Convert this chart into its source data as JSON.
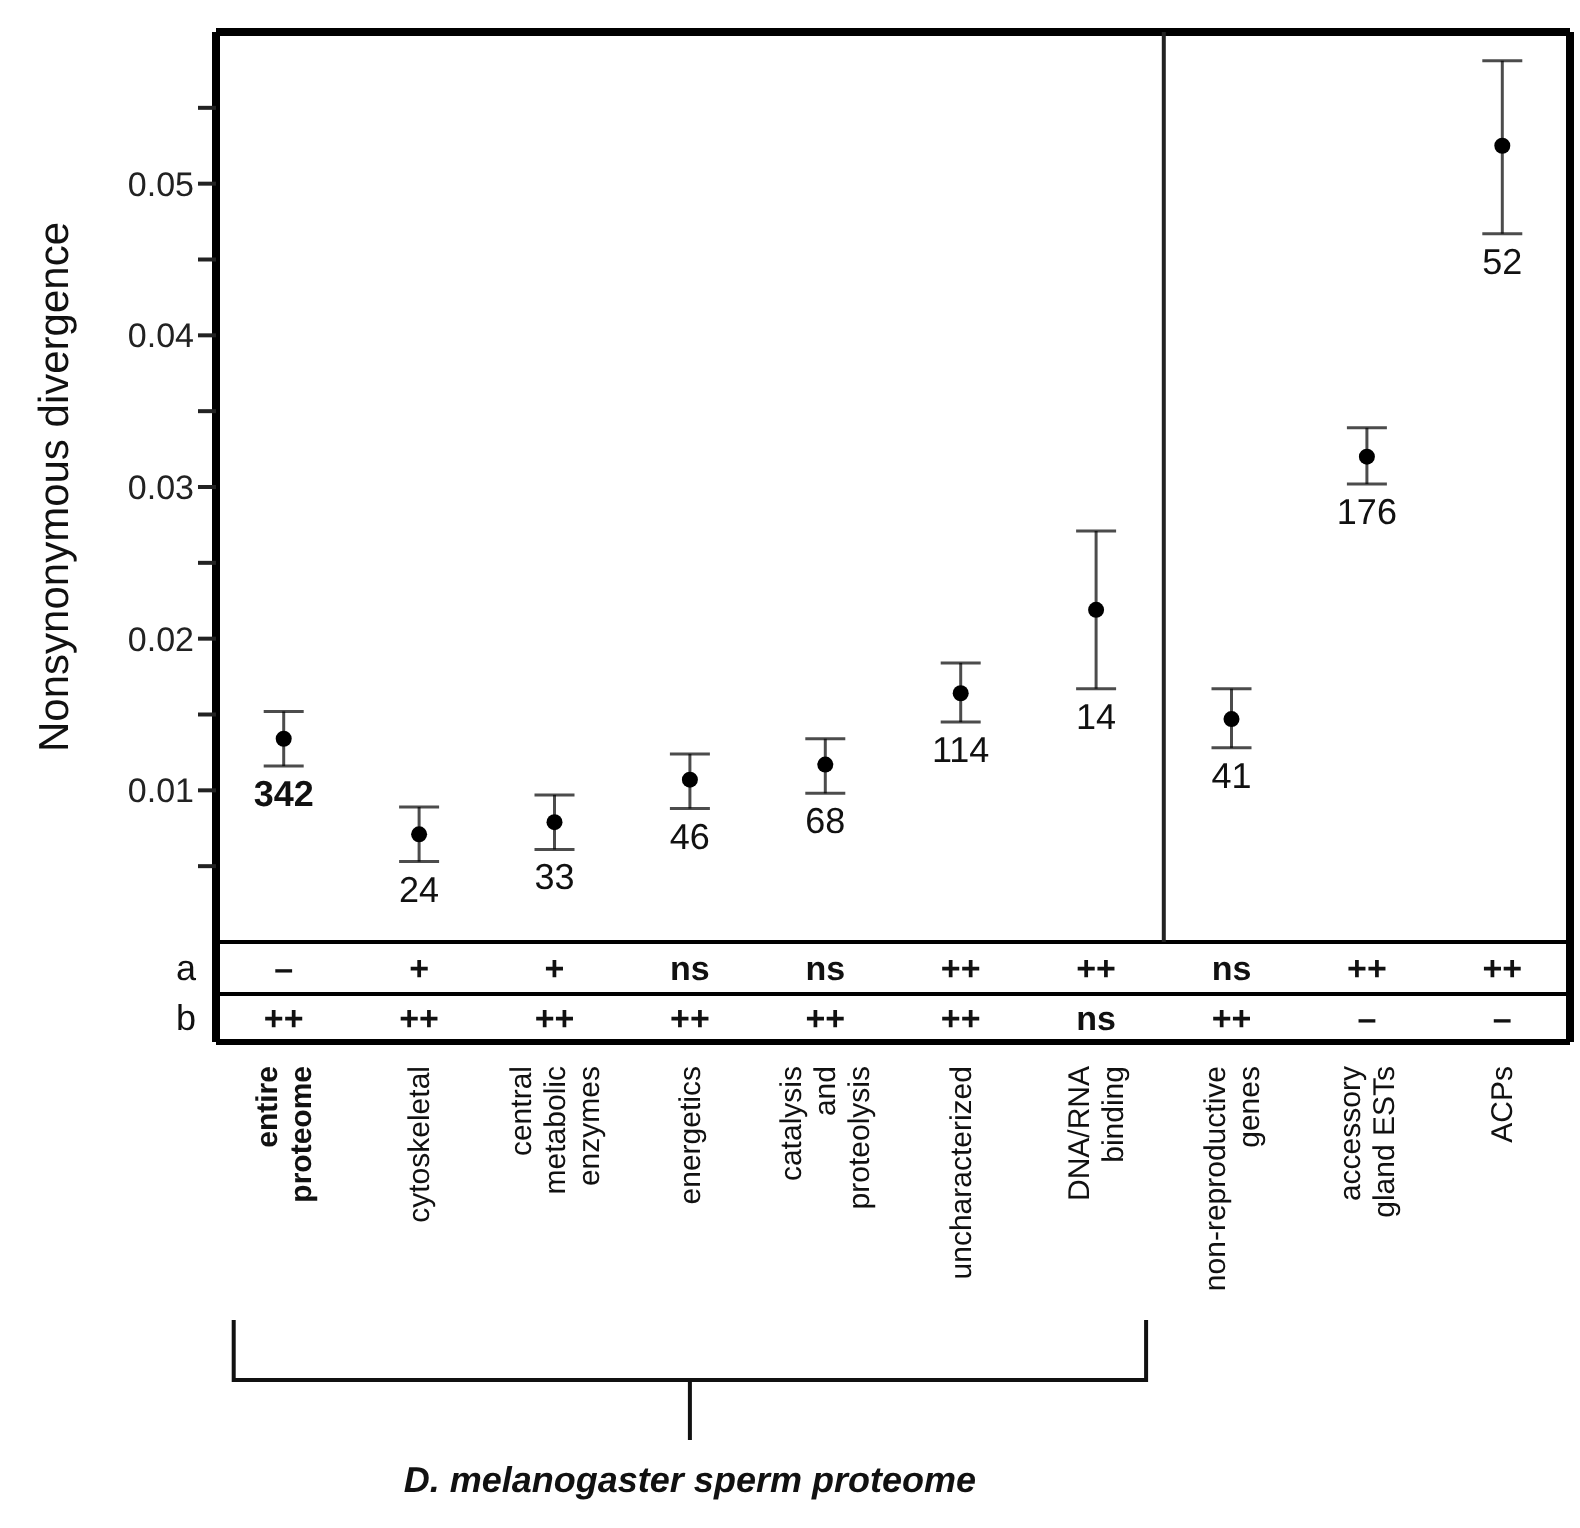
{
  "chart_data": {
    "type": "scatter",
    "ylabel": "Nonsynonymous divergence",
    "categories": [
      "entire proteome",
      "cytoskeletal",
      "central metabolic enzymes",
      "energetics",
      "catalysis and proteolysis",
      "uncharacterized",
      "DNA/RNA binding",
      "non-reproductive genes",
      "accessory gland ESTs",
      "ACPs"
    ],
    "values": [
      0.0134,
      0.0071,
      0.0079,
      0.0107,
      0.0117,
      0.0164,
      0.0219,
      0.0147,
      0.032,
      0.0525
    ],
    "errors": [
      [
        0.0116,
        0.0152
      ],
      [
        0.0053,
        0.0089
      ],
      [
        0.0061,
        0.0097
      ],
      [
        0.0088,
        0.0124
      ],
      [
        0.0098,
        0.0134
      ],
      [
        0.0145,
        0.0184
      ],
      [
        0.0167,
        0.0271
      ],
      [
        0.0128,
        0.0167
      ],
      [
        0.0302,
        0.0339
      ],
      [
        0.0467,
        0.0581
      ]
    ],
    "color": "#000000",
    "marker": "circle",
    "grid": false,
    "legend": false,
    "ylim": [
      0,
      0.06
    ],
    "yticks": [
      {
        "value": 0.005,
        "label": null
      },
      0.01,
      {
        "value": 0.015,
        "label": null
      },
      0.02,
      {
        "value": 0.025,
        "label": null
      },
      0.03,
      {
        "value": 0.035,
        "label": null
      },
      0.04,
      {
        "value": 0.045,
        "label": null
      },
      0.05,
      {
        "value": 0.055,
        "label": null
      }
    ],
    "annotations": [
      "a",
      "–",
      "+",
      "+",
      "ns",
      "ns",
      "++",
      "++",
      "ns",
      "++",
      "++",
      "b",
      "++",
      "++",
      "++",
      "++",
      "++",
      "++",
      "ns",
      "++",
      "–",
      "–",
      "D. melanogaster sperm proteome",
      {
        "text": "342",
        "x": "entire proteome",
        "y": 0.0116
      },
      {
        "text": "24",
        "x": "cytoskeletal",
        "y": 0.0053
      },
      {
        "text": "33",
        "x": "central metabolic enzymes",
        "y": 0.0061
      },
      {
        "text": "46",
        "x": "energetics",
        "y": 0.0088
      },
      {
        "text": "68",
        "x": "catalysis and proteolysis",
        "y": 0.0098
      },
      {
        "text": "114",
        "x": "uncharacterized",
        "y": 0.0145
      },
      {
        "text": "14",
        "x": "DNA/RNA binding",
        "y": 0.0167
      },
      {
        "text": "41",
        "x": "non-reproductive genes",
        "y": 0.0128
      },
      {
        "text": "176",
        "x": "accessory gland ESTs",
        "y": 0.0302
      },
      {
        "text": "52",
        "x": "ACPs",
        "y": 0.0467
      }
    ]
  }
}
